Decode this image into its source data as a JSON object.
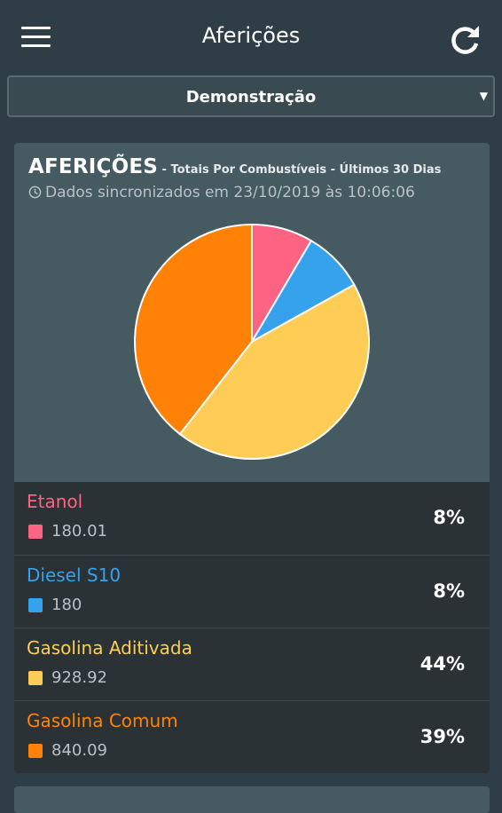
{
  "header": {
    "title": "Aferições",
    "menu_icon": "hamburger-menu-icon",
    "refresh_icon": "refresh-icon"
  },
  "selector": {
    "value": "Demonstração"
  },
  "card": {
    "title": "AFERIÇÕES",
    "subtitle": " - Totais Por Combustíveis  - Últimos 30 Dias",
    "sync_text": "Dados sincronizados em 23/10/2019 às 10:06:06",
    "sync_icon": "clock-icon"
  },
  "chart_data": {
    "type": "pie",
    "slices": [
      {
        "label": "Etanol",
        "value": 180.01,
        "percent": "8%",
        "color": "#ff6384"
      },
      {
        "label": "Diesel S10",
        "value": 180,
        "percent": "8%",
        "color": "#36a2eb"
      },
      {
        "label": "Gasolina Aditivada",
        "value": 928.92,
        "percent": "44%",
        "color": "#ffcd56"
      },
      {
        "label": "Gasolina Comum",
        "value": 840.09,
        "percent": "39%",
        "color": "#ff8207"
      }
    ]
  },
  "legend": [
    {
      "name": "Etanol",
      "value": "180.01",
      "percent": "8%",
      "color": "#ff6384"
    },
    {
      "name": "Diesel S10",
      "value": "180",
      "percent": "8%",
      "color": "#36a2eb"
    },
    {
      "name": "Gasolina Aditivada",
      "value": "928.92",
      "percent": "44%",
      "color": "#ffcd56"
    },
    {
      "name": "Gasolina Comum",
      "value": "840.09",
      "percent": "39%",
      "color": "#ff8207"
    }
  ]
}
